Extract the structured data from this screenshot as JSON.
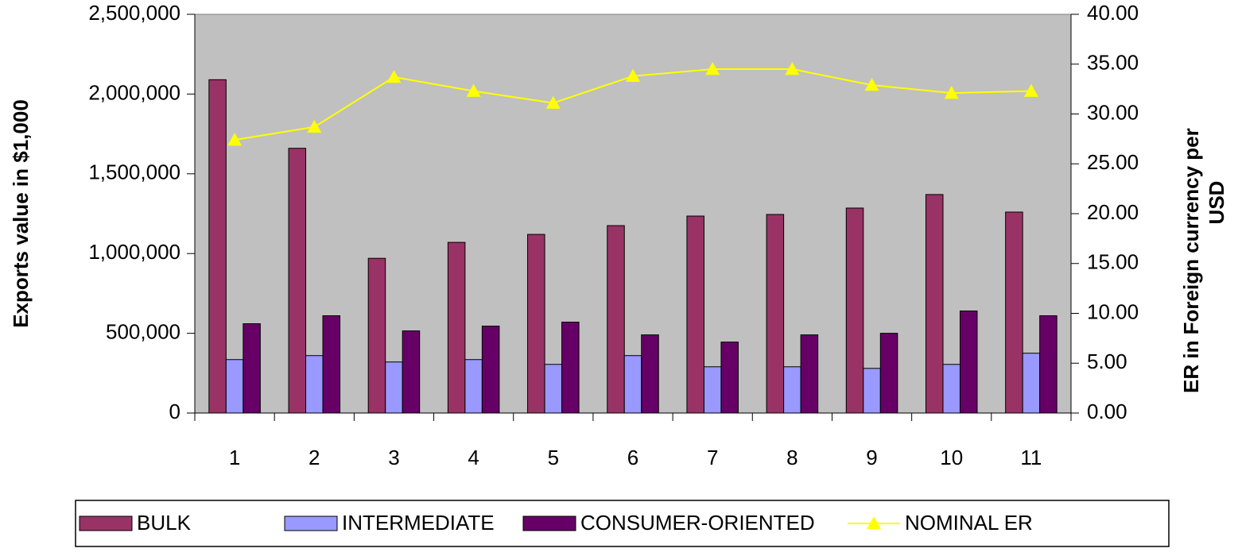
{
  "chart_data": {
    "type": "bar",
    "categories": [
      "1",
      "2",
      "3",
      "4",
      "5",
      "6",
      "7",
      "8",
      "9",
      "10",
      "11"
    ],
    "y_label": "Exports value in $1,000",
    "y2_label": [
      "ER in  Foreign currency per",
      "USD"
    ],
    "plot_background": "#c0c0c0",
    "series": [
      {
        "name": "BULK",
        "color": "#993366",
        "values": [
          2090000,
          1660000,
          970000,
          1070000,
          1120000,
          1175000,
          1235000,
          1245000,
          1285000,
          1370000,
          1260000
        ]
      },
      {
        "name": "INTERMEDIATE",
        "color": "#9999ff",
        "values": [
          335000,
          360000,
          320000,
          335000,
          305000,
          360000,
          290000,
          290000,
          280000,
          305000,
          375000
        ]
      },
      {
        "name": "CONSUMER-ORIENTED",
        "color": "#660066",
        "values": [
          560000,
          610000,
          515000,
          545000,
          570000,
          490000,
          445000,
          490000,
          500000,
          640000,
          610000
        ]
      },
      {
        "name": "NOMINAL ER",
        "type": "line",
        "axis": "y2",
        "color": "#ffff00",
        "values": [
          27.4,
          28.7,
          33.7,
          32.3,
          31.1,
          33.8,
          34.5,
          34.5,
          32.9,
          32.1,
          32.3
        ]
      }
    ],
    "ylim": [
      0,
      2500000
    ],
    "yticks": [
      0,
      {
        "value": 500000,
        "label": "500,000"
      },
      {
        "value": 1000000,
        "label": "1,000,000"
      },
      {
        "value": 1500000,
        "label": "1,500,000"
      },
      {
        "value": 2000000,
        "label": "2,000,000"
      },
      {
        "value": 2500000,
        "label": "2,500,000"
      }
    ],
    "y2lim": [
      0,
      40
    ],
    "y2ticks": [
      {
        "value": 0,
        "label": "0.00"
      },
      {
        "value": 5,
        "label": "5.00"
      },
      {
        "value": 10,
        "label": "10.00"
      },
      {
        "value": 15,
        "label": "15.00"
      },
      {
        "value": 20,
        "label": "20.00"
      },
      {
        "value": 25,
        "label": "25.00"
      },
      {
        "value": 30,
        "label": "30.00"
      },
      {
        "value": 35,
        "label": "35.00"
      },
      {
        "value": 40,
        "label": "40.00"
      }
    ],
    "legend": "bottom"
  }
}
